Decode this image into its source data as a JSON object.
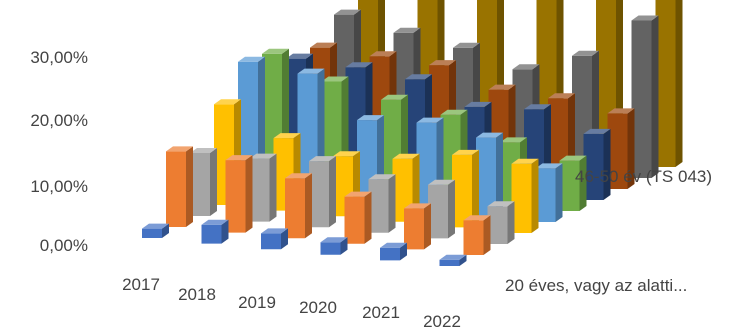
{
  "chart_data": {
    "type": "bar",
    "variant": "3d-column",
    "categories": [
      "2017",
      "2018",
      "2019",
      "2020",
      "2021",
      "2022"
    ],
    "series": [
      {
        "name": "20 éves, vagy az alatti...",
        "color": "#4472c4",
        "values": [
          1.5,
          3.0,
          2.5,
          2.0,
          2.0,
          1.0
        ]
      },
      {
        "name": "",
        "color": "#ed7d31",
        "values": [
          12.0,
          11.5,
          9.5,
          7.5,
          6.5,
          5.5
        ]
      },
      {
        "name": "",
        "color": "#a5a5a5",
        "values": [
          10.0,
          10.0,
          10.5,
          8.5,
          8.5,
          6.0
        ]
      },
      {
        "name": "",
        "color": "#ffc000",
        "values": [
          16.0,
          11.5,
          9.5,
          10.0,
          11.5,
          11.0
        ]
      },
      {
        "name": "",
        "color": "#5b9bd5",
        "values": [
          21.0,
          20.0,
          13.5,
          14.0,
          12.5,
          8.5
        ]
      },
      {
        "name": "46-50 év (TS 043)",
        "color": "#70ad47",
        "values": [
          20.5,
          17.0,
          15.0,
          13.5,
          10.0,
          8.0
        ]
      },
      {
        "name": "",
        "color": "#264478",
        "values": [
          18.0,
          17.5,
          16.5,
          13.0,
          13.5,
          10.5
        ]
      },
      {
        "name": "",
        "color": "#9e480e",
        "values": [
          18.0,
          17.5,
          17.0,
          14.0,
          13.5,
          12.0
        ]
      },
      {
        "name": "",
        "color": "#636363",
        "values": [
          21.5,
          19.5,
          18.0,
          15.5,
          18.5,
          25.0
        ]
      },
      {
        "name": "",
        "color": "#997300",
        "values": [
          31.0,
          31.0,
          31.0,
          30.0,
          31.5,
          31.5
        ]
      }
    ],
    "yticks": [
      "0,00%",
      "10,00%",
      "20,00%",
      "30,00%"
    ],
    "ylim": [
      0,
      35
    ],
    "legend": "none",
    "grid": false
  }
}
